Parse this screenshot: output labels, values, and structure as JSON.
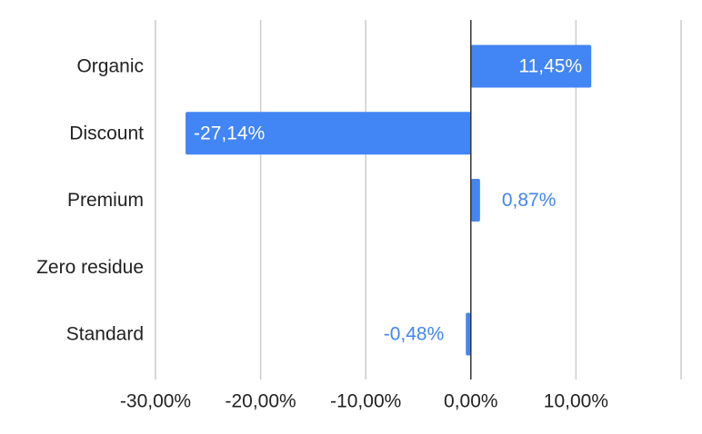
{
  "chart_data": {
    "type": "bar",
    "orientation": "horizontal",
    "categories": [
      "Organic",
      "Discount",
      "Premium",
      "Zero residue",
      "Standard"
    ],
    "values": [
      11.45,
      -27.14,
      0.87,
      null,
      -0.48
    ],
    "data_labels": [
      "11,45%",
      "-27,14%",
      "0,87%",
      "",
      "-0,48%"
    ],
    "xlim": [
      -30,
      20
    ],
    "xticks": [
      -30,
      -20,
      -10,
      0,
      10
    ],
    "xtick_labels": [
      "-30,00%",
      "-20,00%",
      "-10,00%",
      "0,00%",
      "10,00%"
    ],
    "grid": "vertical",
    "legend": "none",
    "title": "",
    "xlabel": "",
    "ylabel": ""
  },
  "colors": {
    "bar": "#4285f4",
    "label_inside": "#ffffff",
    "label_outside": "#4285f4",
    "grid": "#cccccc",
    "zero_line": "#333333"
  }
}
